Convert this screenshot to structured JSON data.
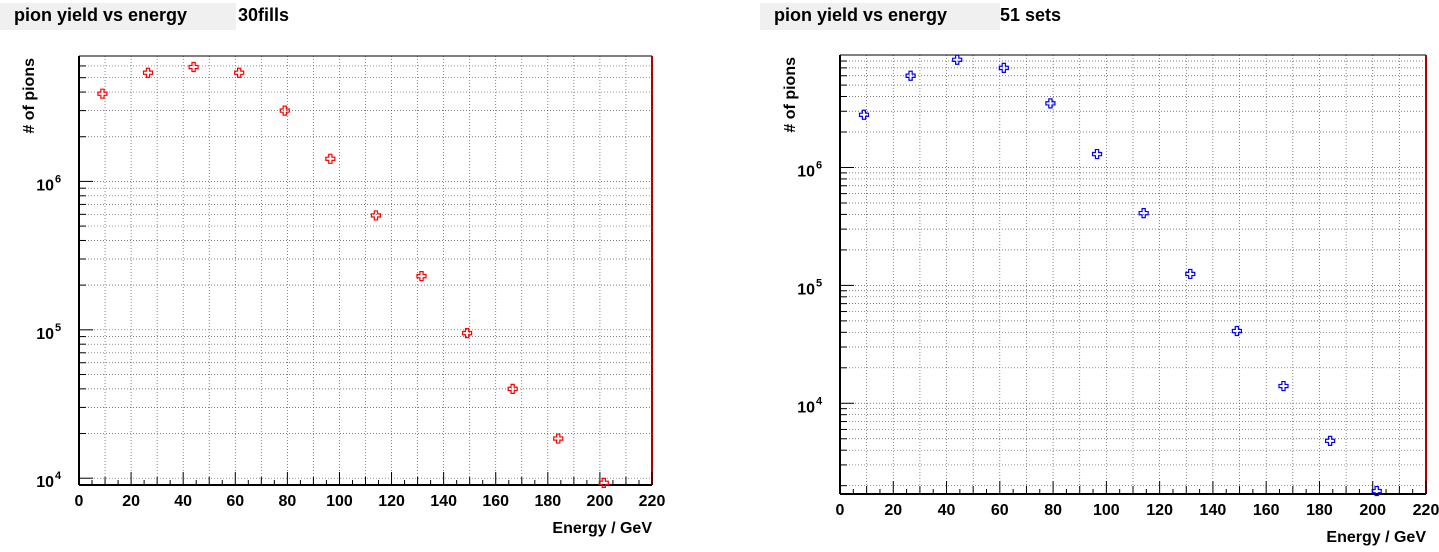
{
  "chart_data": [
    {
      "type": "scatter",
      "title": "pion yield vs energy",
      "title_extra": "30fills",
      "xlabel": "Energy / GeV",
      "ylabel": "# of pions",
      "xlim": [
        0,
        220
      ],
      "ylim": [
        9000,
        7000000
      ],
      "yscale": "log",
      "grid": true,
      "marker_color": "#ff0000",
      "x_ticks": [
        0,
        20,
        40,
        60,
        80,
        100,
        120,
        140,
        160,
        180,
        200,
        220
      ],
      "y_ticks": [
        {
          "value": 10000,
          "base": "10",
          "exp": "4"
        },
        {
          "value": 100000,
          "base": "10",
          "exp": "5"
        },
        {
          "value": 1000000,
          "base": "10",
          "exp": "6"
        }
      ],
      "x": [
        9,
        26.5,
        44,
        61.5,
        79,
        96.5,
        114,
        131.5,
        149,
        166.5,
        184,
        201.5
      ],
      "y": [
        3900000,
        5400000,
        5900000,
        5400000,
        3000000,
        1420000,
        590000,
        230000,
        95000,
        40000,
        18500,
        9300
      ]
    },
    {
      "type": "scatter",
      "title": "pion yield vs energy",
      "title_extra": "51 sets",
      "xlabel": "Energy / GeV",
      "ylabel": "# of pions",
      "xlim": [
        0,
        220
      ],
      "ylim": [
        1700,
        9000000
      ],
      "yscale": "log",
      "grid": true,
      "marker_color": "#0000ff",
      "x_ticks": [
        0,
        20,
        40,
        60,
        80,
        100,
        120,
        140,
        160,
        180,
        200,
        220
      ],
      "y_ticks": [
        {
          "value": 10000,
          "base": "10",
          "exp": "4"
        },
        {
          "value": 100000,
          "base": "10",
          "exp": "5"
        },
        {
          "value": 1000000,
          "base": "10",
          "exp": "6"
        }
      ],
      "x": [
        9,
        26.5,
        44,
        61.5,
        79,
        96.5,
        114,
        131.5,
        149,
        166.5,
        184,
        201.5
      ],
      "y": [
        2800000,
        6000000,
        8200000,
        7000000,
        3500000,
        1300000,
        410000,
        125000,
        41000,
        14000,
        4800,
        1800
      ]
    }
  ]
}
